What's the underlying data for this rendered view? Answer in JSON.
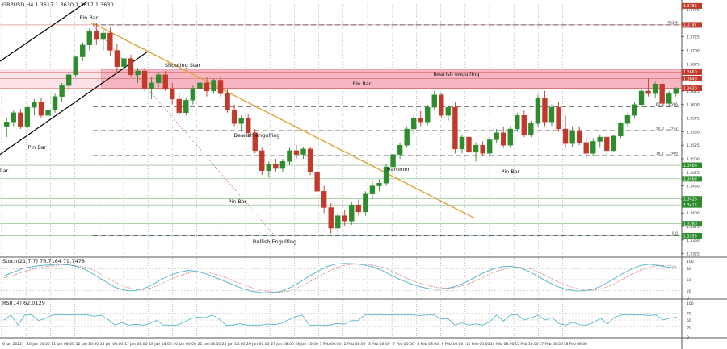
{
  "window": {
    "symbol_info": "GBPUSD,H4  1.3617 1.3630 1.3617 1.3630"
  },
  "indicators": {
    "stoch_label": "Stoch(21,7,7) 76.7164 79.7478",
    "rsi_label": "RSI(14) 62.0129"
  },
  "colors": {
    "bull": "#2e8b2e",
    "bear": "#c0392b",
    "zone": "#f7b6c2",
    "trendline": "#e0a030",
    "channel": "#000000",
    "stoch_main": "#4fb0c6",
    "stoch_signal": "#d46a6a",
    "rsi": "#4fb0c6"
  },
  "chart_data": {
    "type": "candlestick",
    "y_axis_ticks": [
      "1.3775",
      "1.3750",
      "1.3725",
      "1.3700",
      "1.3675",
      "1.3650",
      "1.3625",
      "1.3600",
      "1.3575",
      "1.3550",
      "1.3525",
      "1.3500",
      "1.3475",
      "1.3450",
      "1.3425",
      "1.3400",
      "1.3375",
      "1.3350",
      "1.3325"
    ],
    "ylim": [
      1.332,
      1.379
    ],
    "x_axis_ticks": [
      "6 Jan 2022",
      "10 Jan 00:00",
      "11 Jan 08:00",
      "12 Jan 16:00",
      "14 Jan 00:00",
      "17 Jan 08:00",
      "18 Jan 16:00",
      "20 Jan 00:00",
      "21 Jan 08:00",
      "24 Jan 16:00",
      "26 Jan 00:00",
      "27 Jan 08:00",
      "28 Jan 16:00",
      "1 Feb 00:00",
      "2 Feb 08:00",
      "3 Feb 16:00",
      "7 Feb 00:00",
      "8 Feb 08:00",
      "9 Feb 16:00",
      "11 Feb 00:00",
      "14 Feb 08:00",
      "15 Feb 16:00",
      "17 Feb 00:00",
      "18 Feb 08:00"
    ],
    "price_tags": [
      {
        "label": "1.3782",
        "value": 1.3782,
        "color": "#c0392b"
      },
      {
        "label": "1.3747",
        "value": 1.3747,
        "color": "#c0392b"
      },
      {
        "label": "1.3660",
        "value": 1.366,
        "color": "#c0392b"
      },
      {
        "label": "1.3648",
        "value": 1.3648,
        "color": "#c0392b"
      },
      {
        "label": "1.3630",
        "value": 1.363,
        "color": "#c0392b"
      },
      {
        "label": "1.3488",
        "value": 1.3488,
        "color": "#2e8b2e"
      },
      {
        "label": "1.3463",
        "value": 1.3463,
        "color": "#2e8b2e"
      },
      {
        "label": "1.3426",
        "value": 1.3426,
        "color": "#2e8b2e"
      },
      {
        "label": "1.3415",
        "value": 1.3415,
        "color": "#2e8b2e"
      },
      {
        "label": "1.3380",
        "value": 1.338,
        "color": "#2e8b2e"
      },
      {
        "label": "1.3358",
        "value": 1.3358,
        "color": "#2e8b2e"
      }
    ],
    "fib_levels": [
      {
        "label": "423.6",
        "value": 1.3747
      },
      {
        "label": "61.8 1.3596",
        "value": 1.3596
      },
      {
        "label": "50.0 1.3552",
        "value": 1.3552
      },
      {
        "label": "38.2 1.3506",
        "value": 1.3506
      },
      {
        "label": "0.0",
        "value": 1.3358
      }
    ],
    "resistance_zone": [
      1.363,
      1.3665
    ],
    "annotations": [
      "Pin Bar",
      "Shooting Star",
      "Pin Bar",
      "Bearish engulfing",
      "Pin Bar",
      "Bullish Engulfing",
      "Pin Bar",
      "Bearish engulfing",
      "Hammer",
      "Pin Bar"
    ],
    "left_edge_label": "llar",
    "ohlc": [
      [
        1.356,
        1.3575,
        1.354,
        1.3568
      ],
      [
        1.3568,
        1.359,
        1.356,
        1.3585
      ],
      [
        1.3585,
        1.3592,
        1.3555,
        1.356
      ],
      [
        1.356,
        1.36,
        1.3555,
        1.3595
      ],
      [
        1.3595,
        1.361,
        1.358,
        1.3605
      ],
      [
        1.3605,
        1.3612,
        1.3575,
        1.358
      ],
      [
        1.358,
        1.3598,
        1.357,
        1.359
      ],
      [
        1.359,
        1.362,
        1.3585,
        1.3615
      ],
      [
        1.3615,
        1.364,
        1.3605,
        1.3635
      ],
      [
        1.3635,
        1.366,
        1.3625,
        1.3655
      ],
      [
        1.3655,
        1.369,
        1.365,
        1.3688
      ],
      [
        1.3688,
        1.3715,
        1.368,
        1.371
      ],
      [
        1.371,
        1.374,
        1.37,
        1.3735
      ],
      [
        1.3735,
        1.375,
        1.371,
        1.372
      ],
      [
        1.372,
        1.3738,
        1.37,
        1.3732
      ],
      [
        1.3732,
        1.3742,
        1.369,
        1.37
      ],
      [
        1.37,
        1.3712,
        1.366,
        1.367
      ],
      [
        1.367,
        1.369,
        1.3655,
        1.3685
      ],
      [
        1.3685,
        1.3692,
        1.365,
        1.3655
      ],
      [
        1.3655,
        1.3668,
        1.364,
        1.3662
      ],
      [
        1.3662,
        1.3668,
        1.3625,
        1.363
      ],
      [
        1.363,
        1.365,
        1.361,
        1.364
      ],
      [
        1.364,
        1.366,
        1.3632,
        1.3655
      ],
      [
        1.3655,
        1.3662,
        1.3625,
        1.3628
      ],
      [
        1.3628,
        1.364,
        1.36,
        1.361
      ],
      [
        1.361,
        1.3622,
        1.358,
        1.3585
      ],
      [
        1.3585,
        1.3612,
        1.358,
        1.3608
      ],
      [
        1.3608,
        1.3635,
        1.36,
        1.363
      ],
      [
        1.363,
        1.3648,
        1.362,
        1.364
      ],
      [
        1.364,
        1.365,
        1.3615,
        1.3625
      ],
      [
        1.3625,
        1.3648,
        1.362,
        1.3645
      ],
      [
        1.3645,
        1.3652,
        1.3615,
        1.362
      ],
      [
        1.362,
        1.3628,
        1.3585,
        1.359
      ],
      [
        1.359,
        1.36,
        1.356,
        1.3565
      ],
      [
        1.3565,
        1.358,
        1.355,
        1.3575
      ],
      [
        1.3575,
        1.3582,
        1.354,
        1.3548
      ],
      [
        1.3548,
        1.3555,
        1.351,
        1.3515
      ],
      [
        1.3515,
        1.352,
        1.347,
        1.3478
      ],
      [
        1.3478,
        1.3495,
        1.3465,
        1.349
      ],
      [
        1.349,
        1.35,
        1.3475,
        1.3482
      ],
      [
        1.3482,
        1.35,
        1.3475,
        1.3495
      ],
      [
        1.3495,
        1.352,
        1.3488,
        1.3515
      ],
      [
        1.3515,
        1.3525,
        1.35,
        1.3508
      ],
      [
        1.3508,
        1.3522,
        1.35,
        1.3518
      ],
      [
        1.3518,
        1.3522,
        1.347,
        1.3475
      ],
      [
        1.3475,
        1.348,
        1.3435,
        1.344
      ],
      [
        1.344,
        1.345,
        1.34,
        1.341
      ],
      [
        1.341,
        1.3418,
        1.3362,
        1.3372
      ],
      [
        1.3372,
        1.34,
        1.336,
        1.3395
      ],
      [
        1.3395,
        1.3405,
        1.3375,
        1.3385
      ],
      [
        1.3385,
        1.342,
        1.3378,
        1.3415
      ],
      [
        1.3415,
        1.3425,
        1.3395,
        1.3402
      ],
      [
        1.3402,
        1.344,
        1.3395,
        1.3435
      ],
      [
        1.3435,
        1.3458,
        1.3425,
        1.345
      ],
      [
        1.345,
        1.3462,
        1.344,
        1.3455
      ],
      [
        1.3455,
        1.349,
        1.345,
        1.3485
      ],
      [
        1.3485,
        1.3512,
        1.3478,
        1.3508
      ],
      [
        1.3508,
        1.353,
        1.35,
        1.3525
      ],
      [
        1.3525,
        1.356,
        1.352,
        1.3555
      ],
      [
        1.3555,
        1.358,
        1.3545,
        1.3575
      ],
      [
        1.3575,
        1.3588,
        1.356,
        1.3568
      ],
      [
        1.3568,
        1.36,
        1.3562,
        1.3595
      ],
      [
        1.3595,
        1.3625,
        1.359,
        1.3618
      ],
      [
        1.3618,
        1.3622,
        1.3575,
        1.358
      ],
      [
        1.358,
        1.36,
        1.357,
        1.3595
      ],
      [
        1.3595,
        1.3605,
        1.351,
        1.3518
      ],
      [
        1.3518,
        1.3545,
        1.351,
        1.354
      ],
      [
        1.354,
        1.3548,
        1.3505,
        1.3512
      ],
      [
        1.3512,
        1.353,
        1.3495,
        1.3525
      ],
      [
        1.3525,
        1.3532,
        1.3505,
        1.351
      ],
      [
        1.351,
        1.354,
        1.3505,
        1.3535
      ],
      [
        1.3535,
        1.3555,
        1.3528,
        1.3548
      ],
      [
        1.3548,
        1.3558,
        1.352,
        1.3525
      ],
      [
        1.3525,
        1.356,
        1.352,
        1.3555
      ],
      [
        1.3555,
        1.3585,
        1.355,
        1.358
      ],
      [
        1.358,
        1.359,
        1.354,
        1.3545
      ],
      [
        1.3545,
        1.357,
        1.354,
        1.3565
      ],
      [
        1.3565,
        1.3618,
        1.356,
        1.3612
      ],
      [
        1.3612,
        1.3625,
        1.356,
        1.3568
      ],
      [
        1.3568,
        1.36,
        1.356,
        1.3595
      ],
      [
        1.3595,
        1.3605,
        1.355,
        1.3555
      ],
      [
        1.3555,
        1.358,
        1.352,
        1.3528
      ],
      [
        1.3528,
        1.356,
        1.3522,
        1.3552
      ],
      [
        1.3552,
        1.356,
        1.3525,
        1.353
      ],
      [
        1.353,
        1.3545,
        1.35,
        1.351
      ],
      [
        1.351,
        1.3538,
        1.3505,
        1.3532
      ],
      [
        1.3532,
        1.3545,
        1.352,
        1.354
      ],
      [
        1.354,
        1.3548,
        1.3505,
        1.3515
      ],
      [
        1.3515,
        1.3545,
        1.3512,
        1.3542
      ],
      [
        1.3542,
        1.3568,
        1.3538,
        1.3565
      ],
      [
        1.3565,
        1.3585,
        1.3558,
        1.358
      ],
      [
        1.358,
        1.3605,
        1.3575,
        1.36
      ],
      [
        1.36,
        1.363,
        1.3595,
        1.3625
      ],
      [
        1.3625,
        1.3648,
        1.3615,
        1.362
      ],
      [
        1.362,
        1.3642,
        1.3612,
        1.3638
      ],
      [
        1.3638,
        1.3648,
        1.3595,
        1.3602
      ],
      [
        1.3602,
        1.3625,
        1.3595,
        1.362
      ],
      [
        1.362,
        1.3632,
        1.3615,
        1.363
      ]
    ],
    "stoch_k": [
      60,
      70,
      80,
      85,
      88,
      90,
      92,
      90,
      85,
      75,
      60,
      45,
      30,
      22,
      20,
      25,
      35,
      50,
      62,
      70,
      75,
      72,
      65,
      55,
      45,
      35,
      25,
      18,
      15,
      15,
      18,
      28,
      42,
      58,
      72,
      85,
      92,
      94,
      93,
      90,
      85,
      75,
      62,
      50,
      40,
      32,
      26,
      24,
      26,
      32,
      42,
      55,
      68,
      78,
      85,
      86,
      82,
      72,
      58,
      44,
      32,
      24,
      20,
      20,
      25,
      35,
      50,
      65,
      78,
      88,
      92,
      88,
      84,
      82
    ],
    "stoch_d": [
      55,
      62,
      70,
      78,
      83,
      87,
      90,
      90,
      88,
      82,
      72,
      58,
      44,
      32,
      25,
      23,
      28,
      38,
      50,
      60,
      68,
      72,
      70,
      64,
      56,
      46,
      36,
      27,
      21,
      17,
      16,
      20,
      30,
      42,
      56,
      70,
      82,
      89,
      92,
      92,
      89,
      84,
      74,
      62,
      50,
      41,
      34,
      29,
      27,
      29,
      35,
      45,
      56,
      68,
      77,
      82,
      84,
      80,
      70,
      58,
      45,
      35,
      27,
      22,
      22,
      27,
      36,
      50,
      63,
      75,
      84,
      89,
      88,
      86
    ]
  }
}
